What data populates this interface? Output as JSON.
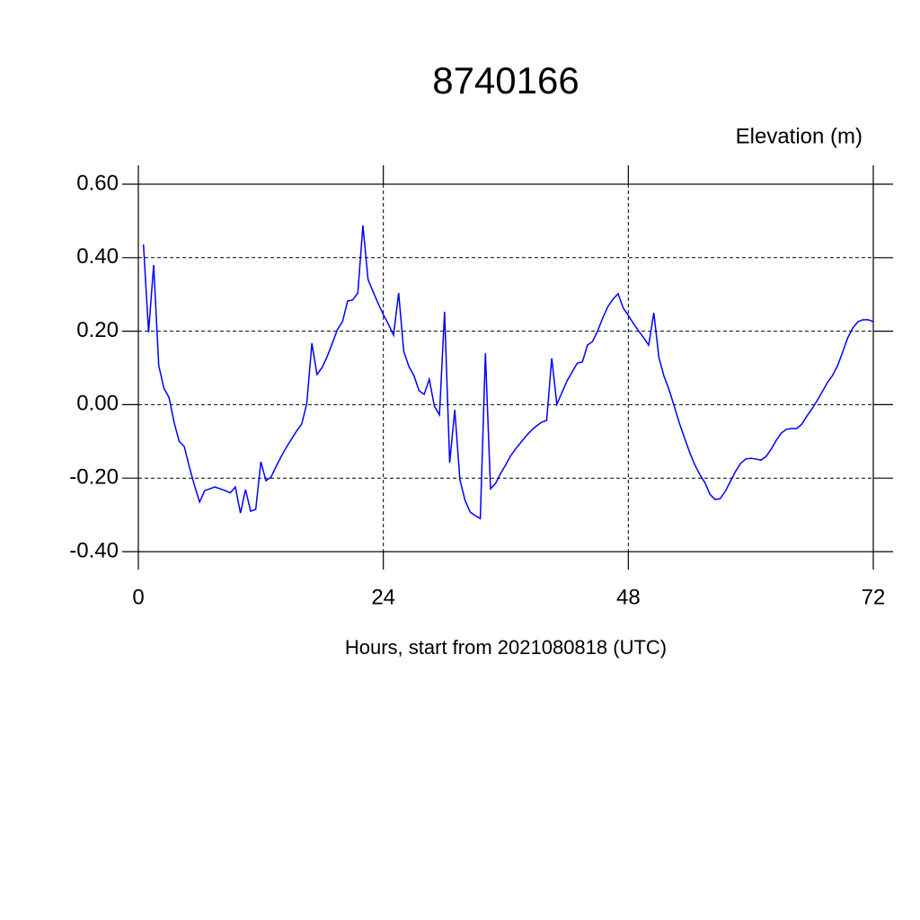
{
  "chart_data": {
    "type": "line",
    "title": "8740166",
    "subtitle": "Elevation (m)",
    "xlabel": "Hours, start from 2021080818 (UTC)",
    "xlim": [
      0,
      72
    ],
    "xticks": [
      0,
      24,
      48,
      72
    ],
    "ylim": [
      -0.4,
      0.6
    ],
    "yticks": [
      {
        "value": -0.4,
        "label": "-0.40"
      },
      {
        "value": -0.2,
        "label": "-0.20"
      },
      {
        "value": 0,
        "label": "0.00"
      },
      {
        "value": 0.2,
        "label": "0.20"
      },
      {
        "value": 0.4,
        "label": "0.40"
      },
      {
        "value": 0.6,
        "label": "0.60"
      }
    ],
    "grid": true,
    "x": [
      0.5,
      1,
      1.5,
      2,
      2.5,
      3,
      3.5,
      4,
      4.5,
      5,
      5.5,
      6,
      6.5,
      7.5,
      8.5,
      9,
      9.5,
      10,
      10.5,
      11,
      11.5,
      12,
      12.5,
      13,
      13.5,
      14,
      14.5,
      15,
      15.5,
      16,
      16.5,
      17,
      17.5,
      18,
      18.5,
      19,
      19.5,
      20,
      20.5,
      21,
      21.5,
      22,
      22.5,
      23,
      23.5,
      24,
      24.5,
      25,
      25.5,
      26,
      26.5,
      27,
      27.5,
      28,
      28.5,
      29,
      29.5,
      30,
      30.5,
      31,
      31.5,
      32,
      32.5,
      33,
      33.5,
      34,
      34.5,
      35,
      35.5,
      36,
      36.5,
      37,
      37.5,
      38,
      38.5,
      39,
      39.5,
      40,
      40.5,
      41,
      41.5,
      42,
      42.5,
      43,
      43.5,
      44,
      44.5,
      45,
      45.5,
      46,
      46.5,
      47,
      47.5,
      48,
      48.5,
      49,
      49.5,
      50,
      50.5,
      51,
      51.5,
      52,
      52.5,
      53,
      53.5,
      54,
      54.5,
      55,
      55.5,
      56,
      56.5,
      57,
      57.5,
      58,
      58.5,
      59,
      59.5,
      60,
      60.5,
      61,
      61.5,
      62,
      62.5,
      63,
      63.5,
      64,
      64.5,
      65,
      65.5,
      66,
      66.5,
      67,
      67.5,
      68,
      68.5,
      69,
      69.5,
      70,
      70.5,
      71,
      71.5,
      72
    ],
    "series": [
      {
        "color": "#0000ff",
        "values": [
          0.436,
          0.197,
          0.38,
          0.106,
          0.045,
          0.02,
          -0.048,
          -0.1,
          -0.114,
          -0.17,
          -0.22,
          -0.265,
          -0.234,
          -0.224,
          -0.234,
          -0.24,
          -0.224,
          -0.295,
          -0.231,
          -0.29,
          -0.285,
          -0.155,
          -0.207,
          -0.197,
          -0.168,
          -0.141,
          -0.116,
          -0.094,
          -0.072,
          -0.053,
          0.003,
          0.167,
          0.082,
          0.101,
          0.131,
          0.167,
          0.204,
          0.226,
          0.282,
          0.285,
          0.304,
          0.488,
          0.341,
          0.307,
          0.275,
          0.245,
          0.219,
          0.189,
          0.304,
          0.145,
          0.104,
          0.079,
          0.038,
          0.028,
          0.069,
          -0.004,
          -0.028,
          0.253,
          -0.158,
          -0.014,
          -0.204,
          -0.26,
          -0.292,
          -0.302,
          -0.31,
          0.14,
          -0.229,
          -0.214,
          -0.187,
          -0.163,
          -0.138,
          -0.119,
          -0.102,
          -0.085,
          -0.07,
          -0.058,
          -0.048,
          -0.043,
          0.126,
          0.001,
          0.033,
          0.065,
          0.089,
          0.113,
          0.116,
          0.162,
          0.172,
          0.201,
          0.236,
          0.267,
          0.287,
          0.302,
          0.263,
          0.243,
          0.221,
          0.201,
          0.182,
          0.162,
          0.25,
          0.128,
          0.077,
          0.04,
          -0.004,
          -0.05,
          -0.09,
          -0.129,
          -0.163,
          -0.19,
          -0.212,
          -0.244,
          -0.258,
          -0.256,
          -0.236,
          -0.209,
          -0.182,
          -0.16,
          -0.148,
          -0.146,
          -0.148,
          -0.151,
          -0.141,
          -0.121,
          -0.097,
          -0.077,
          -0.067,
          -0.065,
          -0.065,
          -0.053,
          -0.031,
          -0.011,
          0.011,
          0.035,
          0.06,
          0.079,
          0.106,
          0.143,
          0.182,
          0.209,
          0.226,
          0.231,
          0.231,
          0.226
        ]
      }
    ]
  }
}
